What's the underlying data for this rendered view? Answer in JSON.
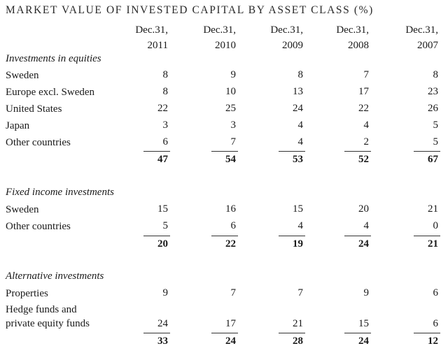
{
  "title": "MARKET VALUE OF INVESTED CAPITAL BY ASSET CLASS (%)",
  "columns": [
    {
      "line1": "Dec.31,",
      "line2": "2011"
    },
    {
      "line1": "Dec.31,",
      "line2": "2010"
    },
    {
      "line1": "Dec.31,",
      "line2": "2009"
    },
    {
      "line1": "Dec.31,",
      "line2": "2008"
    },
    {
      "line1": "Dec.31,",
      "line2": "2007"
    }
  ],
  "sections": [
    {
      "heading": "Investments in equities",
      "rows": [
        {
          "label": "Sweden",
          "values": [
            "8",
            "9",
            "8",
            "7",
            "8"
          ]
        },
        {
          "label": "Europe excl. Sweden",
          "values": [
            "8",
            "10",
            "13",
            "17",
            "23"
          ]
        },
        {
          "label": "United States",
          "values": [
            "22",
            "25",
            "24",
            "22",
            "26"
          ]
        },
        {
          "label": "Japan",
          "values": [
            "3",
            "3",
            "4",
            "4",
            "5"
          ]
        },
        {
          "label": "Other countries",
          "values": [
            "6",
            "7",
            "4",
            "2",
            "5"
          ]
        }
      ],
      "totals": [
        "47",
        "54",
        "53",
        "52",
        "67"
      ]
    },
    {
      "heading": "Fixed income investments",
      "rows": [
        {
          "label": "Sweden",
          "values": [
            "15",
            "16",
            "15",
            "20",
            "21"
          ]
        },
        {
          "label": "Other countries",
          "values": [
            "5",
            "6",
            "4",
            "4",
            "0"
          ]
        }
      ],
      "totals": [
        "20",
        "22",
        "19",
        "24",
        "21"
      ]
    },
    {
      "heading": "Alternative investments",
      "rows": [
        {
          "label": "Properties",
          "values": [
            "9",
            "7",
            "7",
            "9",
            "6"
          ]
        },
        {
          "label_line1": "Hedge funds and",
          "label_line2": "private equity funds",
          "values": [
            "24",
            "17",
            "21",
            "15",
            "6"
          ]
        }
      ],
      "totals": [
        "33",
        "24",
        "28",
        "24",
        "12"
      ]
    }
  ]
}
